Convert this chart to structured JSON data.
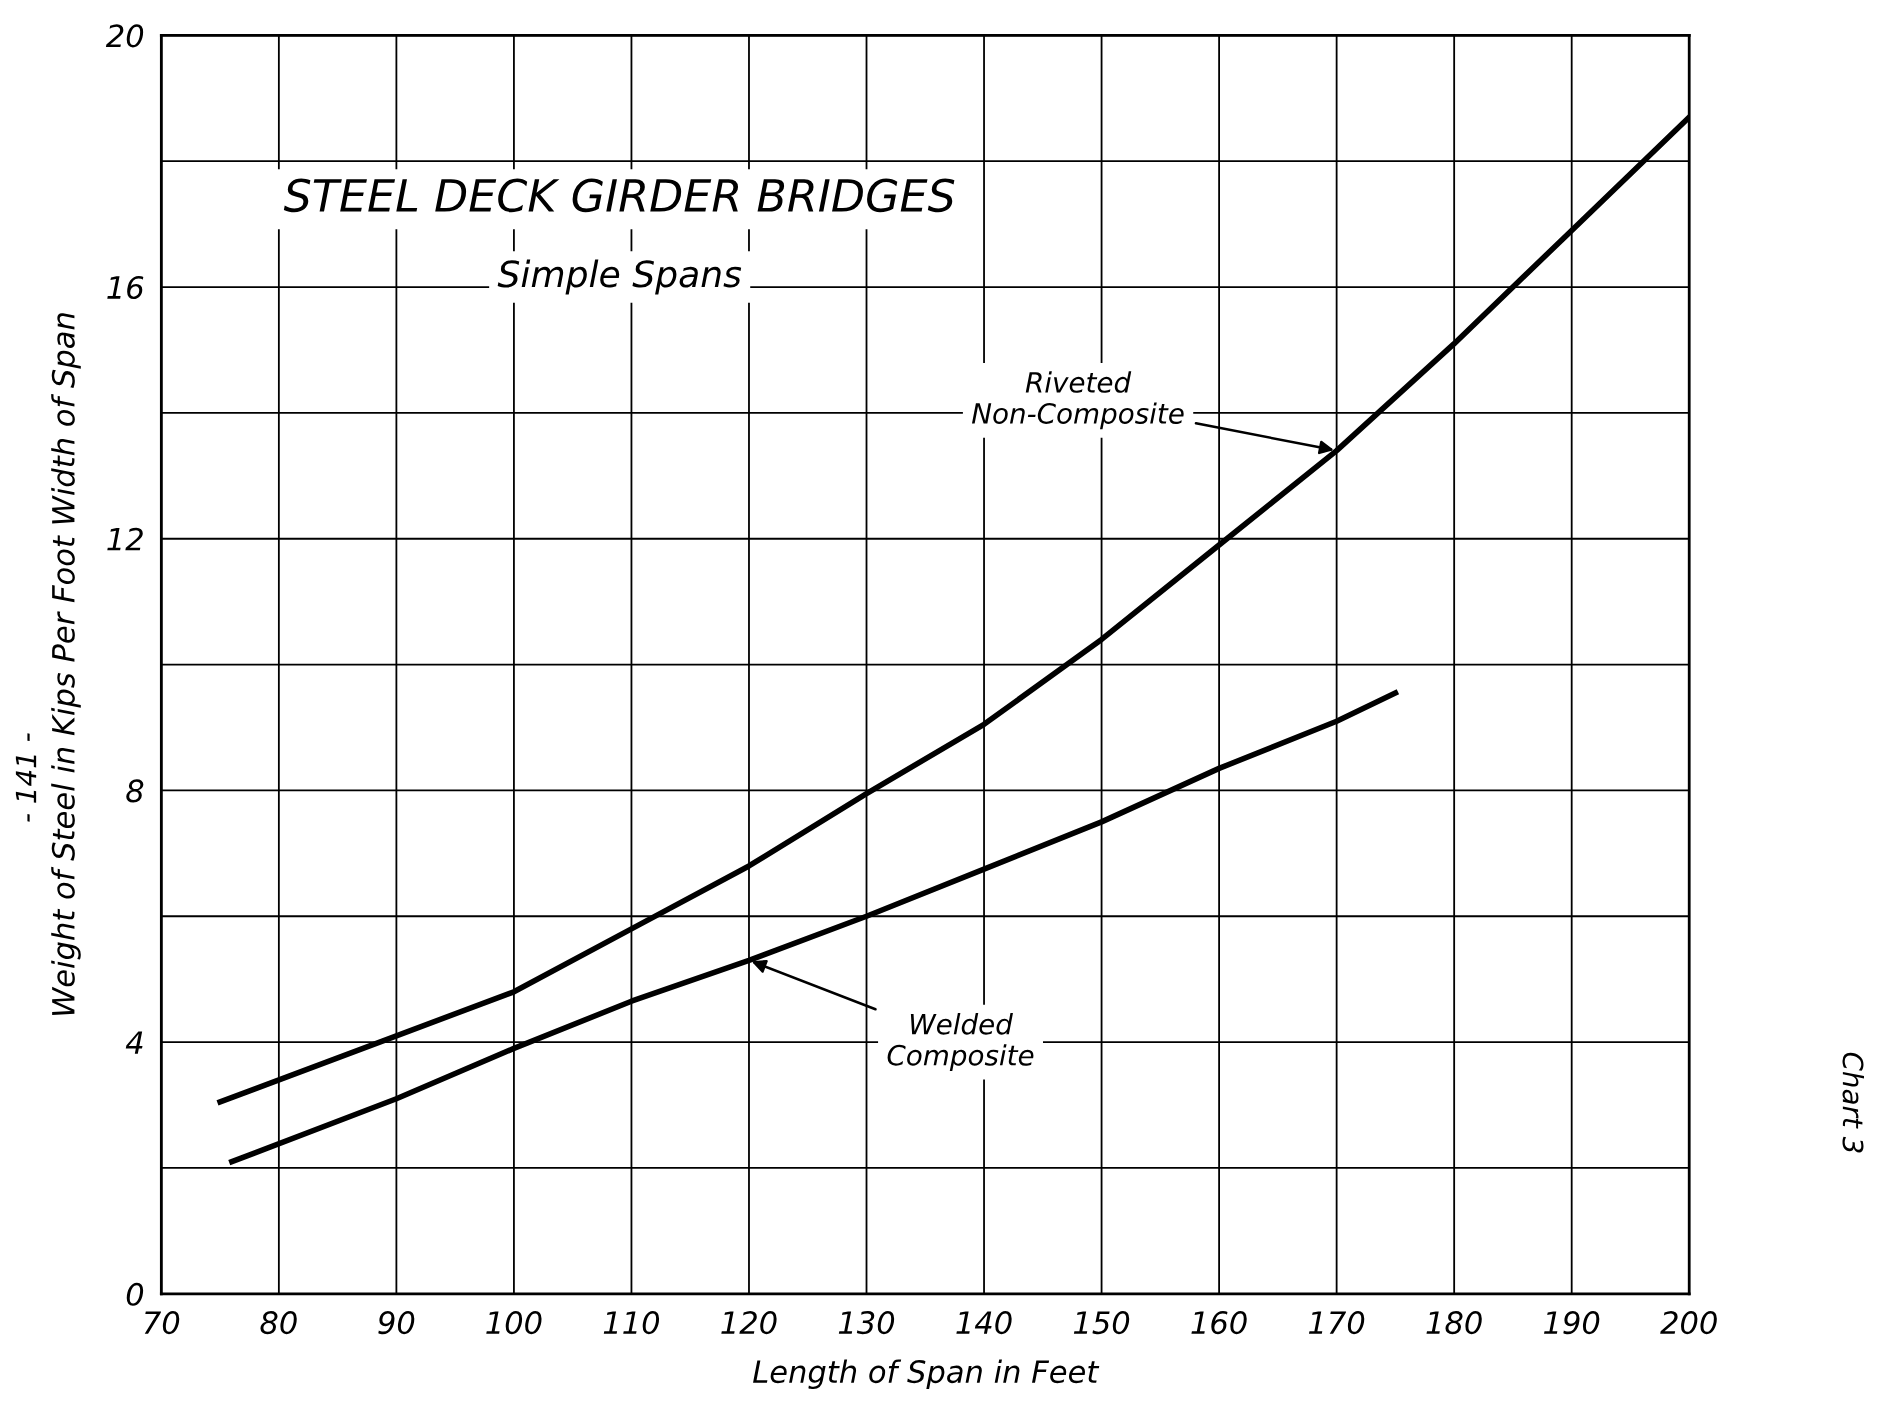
{
  "chart_data": {
    "type": "line",
    "title": "STEEL DECK GIRDER BRIDGES",
    "subtitle": "Simple Spans",
    "xlabel": "Length of Span in Feet",
    "ylabel": "Weight of Steel in Kips Per Foot Width of Span",
    "series": [
      {
        "color": "#000000",
        "x": [
          75,
          90,
          100,
          110,
          120,
          130,
          140,
          150,
          160,
          170,
          180,
          190,
          200
        ],
        "values": [
          3.05,
          4.1,
          4.8,
          5.8,
          6.8,
          7.95,
          9.05,
          10.4,
          11.9,
          13.4,
          15.1,
          16.9,
          18.7
        ]
      },
      {
        "color": "#000000",
        "x": [
          76,
          90,
          100,
          110,
          120,
          130,
          140,
          150,
          160,
          170,
          175
        ],
        "values": [
          2.1,
          3.1,
          3.9,
          4.65,
          5.3,
          6.0,
          6.75,
          7.5,
          8.35,
          9.1,
          9.55
        ]
      }
    ],
    "xlim": [
      70,
      200
    ],
    "xticks": [
      70,
      80,
      90,
      100,
      110,
      120,
      130,
      140,
      150,
      160,
      170,
      180,
      190,
      200
    ],
    "ylim": [
      0,
      20
    ],
    "yticks": [
      0,
      {
        "value": 2,
        "label": null
      },
      4,
      {
        "value": 6,
        "label": null
      },
      8,
      {
        "value": 10,
        "label": null
      },
      12,
      {
        "value": 14,
        "label": null
      },
      16,
      {
        "value": 18,
        "label": null
      },
      20
    ],
    "grid": true,
    "legend": false,
    "marker": "none",
    "line_style": "solid",
    "annotations": [
      {
        "text": "Riveted\nNon-Composite",
        "x": 170,
        "y": 13.4
      },
      {
        "text": "Welded\nComposite",
        "x": 120,
        "y": 5.3
      },
      "Chart 3",
      "- 141 -"
    ]
  }
}
